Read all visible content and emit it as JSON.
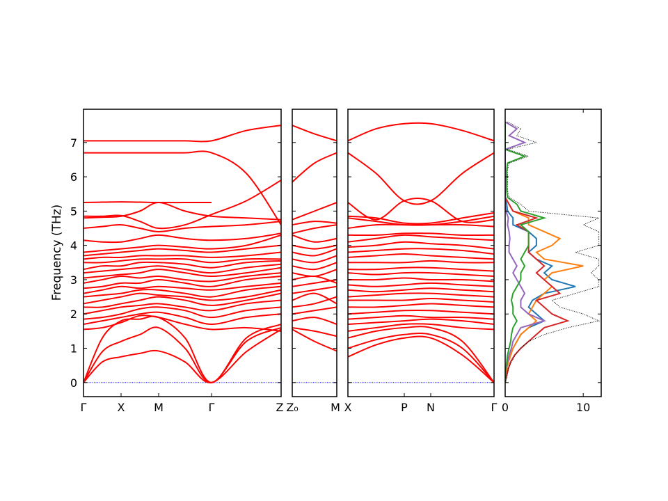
{
  "chart_data": {
    "type": "line",
    "title": "",
    "ylabel": "Frequency (THz)",
    "ylim": [
      -0.41,
      7.97
    ],
    "yticks": [
      "0",
      "1",
      "2",
      "3",
      "4",
      "5",
      "6",
      "7"
    ],
    "band_color": "#ff0000",
    "zero_line_color": "#0000ff",
    "panels": [
      {
        "name": "gamma-x-m-gamma-z",
        "tick_labels": [
          "Γ",
          "X",
          "M",
          "Γ",
          "Z"
        ],
        "bands": [
          [
            0,
            0.6,
            0.75,
            0.85,
            0.92,
            0.6,
            0,
            0.9,
            1.55
          ],
          [
            0,
            0.9,
            1.2,
            1.4,
            1.6,
            1.0,
            0,
            1.2,
            1.6
          ],
          [
            0,
            1.3,
            1.8,
            1.85,
            1.9,
            1.3,
            0,
            1.3,
            1.7
          ],
          [
            1.55,
            1.6,
            1.75,
            1.95,
            1.9,
            1.7,
            1.55,
            1.6,
            1.5
          ],
          [
            1.7,
            1.8,
            1.9,
            2.0,
            2.05,
            1.9,
            1.7,
            1.9,
            2.0
          ],
          [
            1.85,
            1.9,
            2.0,
            2.15,
            2.2,
            2.1,
            1.9,
            2.1,
            2.2
          ],
          [
            2.0,
            2.1,
            2.2,
            2.25,
            2.3,
            2.2,
            2.1,
            2.3,
            2.4
          ],
          [
            2.2,
            2.2,
            2.3,
            2.4,
            2.5,
            2.4,
            2.25,
            2.4,
            2.6
          ],
          [
            2.3,
            2.4,
            2.5,
            2.6,
            2.55,
            2.5,
            2.4,
            2.5,
            2.7
          ],
          [
            2.5,
            2.55,
            2.6,
            2.7,
            2.7,
            2.6,
            2.5,
            2.7,
            2.8
          ],
          [
            2.6,
            2.7,
            2.8,
            2.75,
            2.8,
            2.75,
            2.7,
            2.8,
            2.9
          ],
          [
            2.75,
            2.8,
            2.9,
            2.9,
            3.0,
            2.9,
            2.8,
            3.0,
            3.1
          ],
          [
            2.9,
            3.0,
            3.1,
            3.05,
            3.1,
            3.0,
            2.95,
            3.1,
            3.2
          ],
          [
            3.05,
            3.1,
            3.15,
            3.2,
            3.3,
            3.2,
            3.1,
            3.2,
            3.35
          ],
          [
            3.2,
            3.25,
            3.3,
            3.35,
            3.4,
            3.3,
            3.2,
            3.35,
            3.45
          ],
          [
            3.3,
            3.4,
            3.4,
            3.5,
            3.5,
            3.45,
            3.35,
            3.5,
            3.55
          ],
          [
            3.5,
            3.5,
            3.55,
            3.6,
            3.6,
            3.6,
            3.5,
            3.6,
            3.6
          ],
          [
            3.6,
            3.65,
            3.65,
            3.7,
            3.7,
            3.7,
            3.65,
            3.7,
            3.8
          ],
          [
            3.7,
            3.75,
            3.8,
            3.85,
            3.9,
            3.85,
            3.8,
            3.9,
            4.0
          ],
          [
            3.8,
            3.85,
            3.9,
            3.95,
            4.0,
            3.95,
            3.9,
            4.0,
            4.3
          ],
          [
            4.15,
            4.1,
            4.1,
            4.2,
            4.3,
            4.2,
            4.15,
            4.2,
            4.35
          ],
          [
            4.5,
            4.55,
            4.6,
            4.5,
            4.4,
            4.5,
            4.55,
            4.6,
            4.7
          ],
          [
            4.8,
            4.82,
            4.85,
            5.0,
            5.25,
            5.0,
            4.85,
            4.8,
            4.75
          ],
          [
            4.85,
            4.85,
            4.87,
            4.7,
            4.5,
            4.6,
            4.9,
            5.3,
            5.9
          ],
          [
            5.25,
            5.26,
            5.27,
            5.26,
            5.25,
            5.25,
            5.25,
            null,
            null
          ],
          [
            6.7,
            6.7,
            6.7,
            6.7,
            6.7,
            6.7,
            6.7,
            6.1,
            4.6
          ],
          [
            7.05,
            7.05,
            7.05,
            7.05,
            7.05,
            7.05,
            7.05,
            7.35,
            7.5
          ]
        ]
      },
      {
        "name": "z0-m",
        "tick_labels": [
          "Z₀",
          "M"
        ],
        "bands": [
          [
            1.55,
            1.2,
            0.92
          ],
          [
            1.6,
            1.5,
            1.35
          ],
          [
            1.8,
            1.9,
            1.7
          ],
          [
            2.0,
            2.1,
            2.2
          ],
          [
            2.2,
            2.3,
            2.5
          ],
          [
            2.4,
            2.6,
            2.3
          ],
          [
            2.6,
            2.7,
            2.8
          ],
          [
            2.8,
            2.9,
            3.0
          ],
          [
            3.0,
            3.1,
            2.9
          ],
          [
            3.2,
            3.1,
            3.3
          ],
          [
            3.4,
            3.3,
            3.5
          ],
          [
            3.6,
            3.5,
            3.7
          ],
          [
            3.8,
            3.7,
            3.9
          ],
          [
            4.0,
            3.9,
            4.0
          ],
          [
            4.3,
            4.1,
            4.2
          ],
          [
            4.35,
            4.5,
            4.6
          ],
          [
            4.6,
            4.7,
            4.65
          ],
          [
            4.75,
            5.0,
            5.25
          ],
          [
            5.85,
            6.4,
            6.7
          ],
          [
            7.5,
            7.25,
            7.05
          ]
        ]
      },
      {
        "name": "x-p-n-gamma",
        "tick_labels": [
          "X",
          "P",
          "N",
          "Γ"
        ],
        "bands": [
          [
            0.75,
            1.1,
            1.3,
            1.3,
            0.8,
            0
          ],
          [
            1.0,
            1.25,
            1.4,
            1.4,
            1.0,
            0
          ],
          [
            1.3,
            1.5,
            1.6,
            1.6,
            1.2,
            0
          ],
          [
            1.5,
            1.6,
            1.7,
            1.7,
            1.6,
            1.55
          ],
          [
            1.7,
            1.75,
            1.8,
            1.85,
            1.8,
            1.7
          ],
          [
            1.85,
            1.9,
            1.95,
            1.9,
            1.9,
            1.85
          ],
          [
            2.0,
            2.05,
            2.1,
            2.1,
            2.05,
            2.0
          ],
          [
            2.2,
            2.2,
            2.25,
            2.3,
            2.25,
            2.2
          ],
          [
            2.4,
            2.4,
            2.4,
            2.45,
            2.4,
            2.35
          ],
          [
            2.5,
            2.55,
            2.6,
            2.6,
            2.55,
            2.5
          ],
          [
            2.7,
            2.65,
            2.7,
            2.75,
            2.7,
            2.65
          ],
          [
            2.85,
            2.8,
            2.85,
            2.9,
            2.85,
            2.8
          ],
          [
            3.0,
            3.0,
            3.05,
            3.0,
            3.0,
            2.95
          ],
          [
            3.2,
            3.15,
            3.2,
            3.2,
            3.15,
            3.1
          ],
          [
            3.3,
            3.3,
            3.35,
            3.35,
            3.3,
            3.25
          ],
          [
            3.5,
            3.5,
            3.5,
            3.55,
            3.5,
            3.5
          ],
          [
            3.65,
            3.7,
            3.75,
            3.7,
            3.65,
            3.6
          ],
          [
            3.8,
            3.85,
            3.9,
            3.9,
            3.85,
            3.75
          ],
          [
            3.95,
            4.0,
            4.1,
            4.05,
            4.0,
            3.9
          ],
          [
            4.1,
            4.2,
            4.3,
            4.25,
            4.2,
            4.15
          ],
          [
            4.3,
            4.3,
            4.35,
            4.35,
            4.3,
            4.3
          ],
          [
            4.5,
            4.6,
            4.6,
            4.6,
            4.6,
            4.55
          ],
          [
            4.8,
            4.7,
            4.6,
            4.6,
            4.7,
            4.85
          ],
          [
            4.85,
            4.8,
            4.65,
            4.65,
            4.8,
            4.95
          ],
          [
            6.7,
            6.1,
            5.3,
            5.3,
            6.1,
            6.7
          ],
          [
            5.25,
            4.75,
            5.3,
            5.3,
            4.7,
            4.75
          ],
          [
            7.05,
            7.4,
            7.55,
            7.55,
            7.35,
            7.05
          ]
        ]
      }
    ],
    "dos": {
      "xlim": [
        0,
        12.3
      ],
      "xticks": [
        "0",
        "10"
      ],
      "frequency_start": 0,
      "frequency_step": 0.2,
      "series": [
        {
          "name": "total",
          "color": "#000000",
          "style": "dotted",
          "values": [
            0,
            0.2,
            0.4,
            0.8,
            1.3,
            2,
            3,
            5,
            8,
            12,
            10,
            7,
            6,
            9,
            12,
            12,
            11,
            12,
            12,
            9,
            12,
            12,
            12,
            10,
            12,
            3,
            2,
            0.5,
            0.3,
            0.3,
            0.3,
            0.3,
            0.5,
            3,
            0.3,
            4,
            1.5,
            2,
            0.3
          ]
        },
        {
          "name": "blue",
          "color": "#1f77b4",
          "style": "solid",
          "values": [
            0,
            0.1,
            0.2,
            0.4,
            0.7,
            1,
            1.5,
            2,
            3,
            5,
            4,
            3,
            3.5,
            5,
            9,
            6,
            5,
            6,
            4,
            3,
            4,
            4,
            3,
            1,
            1,
            0.3,
            0.2,
            0,
            0,
            0,
            0,
            0,
            0,
            0,
            0,
            0,
            0,
            0,
            0
          ]
        },
        {
          "name": "orange",
          "color": "#ff7f0e",
          "style": "solid",
          "values": [
            0,
            0.1,
            0.2,
            0.4,
            0.7,
            1,
            1.5,
            2,
            3,
            4,
            3,
            3.5,
            4,
            5,
            6,
            5,
            6,
            10,
            5,
            4,
            6,
            7,
            5,
            3,
            3,
            1,
            0.5,
            0,
            0,
            0,
            0,
            0,
            0,
            0,
            0,
            0,
            0,
            0,
            0
          ]
        },
        {
          "name": "green",
          "color": "#2ca02c",
          "style": "solid",
          "values": [
            0,
            0.05,
            0.1,
            0.2,
            0.3,
            0.5,
            0.7,
            0.8,
            1,
            1.5,
            1,
            1,
            0.8,
            1,
            1.5,
            2,
            2,
            2.5,
            2,
            2.5,
            3,
            3,
            3,
            2,
            5,
            2,
            1.5,
            0.3,
            0.2,
            0.2,
            0.2,
            0.2,
            0.3,
            2.5,
            0,
            0,
            0,
            0,
            0
          ]
        },
        {
          "name": "red",
          "color": "#d62728",
          "style": "solid",
          "values": [
            0,
            0.2,
            0.4,
            0.7,
            1.2,
            2,
            3,
            4,
            5,
            8,
            6,
            5,
            4,
            7,
            6,
            5,
            4,
            5,
            4,
            3,
            3,
            3,
            3,
            1.5,
            4,
            1,
            0.5,
            0,
            0,
            0,
            0,
            0,
            0,
            0,
            0,
            0,
            0,
            0,
            0
          ]
        },
        {
          "name": "purple",
          "color": "#9467bd",
          "style": "solid",
          "values": [
            0,
            0.05,
            0.1,
            0.3,
            0.5,
            0.8,
            1,
            1.5,
            2,
            5,
            3,
            2,
            2,
            2.5,
            2,
            1.5,
            1,
            1.5,
            1,
            0.5,
            0.5,
            0.6,
            0.5,
            0.3,
            0.4,
            0.1,
            0,
            0,
            0,
            0,
            0,
            0,
            0,
            0,
            0,
            2.5,
            0.5,
            1.5,
            0
          ]
        }
      ]
    }
  }
}
